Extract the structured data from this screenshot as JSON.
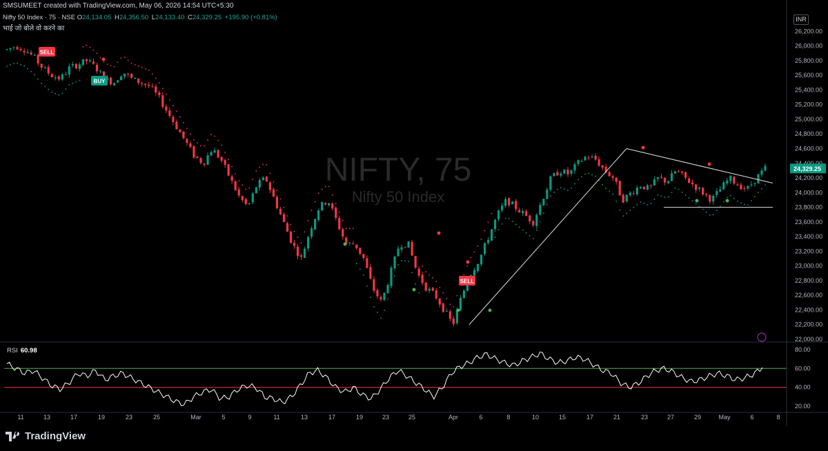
{
  "header": {
    "created_line": "SMSUMEET created with TradingView.com, May 06, 2026 14:54 UTC+5:30",
    "symbol_line": "Nifty 50 Index · 75 · NSE",
    "ohlc": {
      "open_label": "O",
      "open": "24,134.05",
      "high_label": "H",
      "high": "24,356.50",
      "low_label": "L",
      "low": "24,133.40",
      "close_label": "C",
      "close": "24,329.25",
      "change": "+195.90 (+0.81%)"
    },
    "note": "भाई जो बोले वो करने का"
  },
  "currency": "INR",
  "watermark": {
    "title": "NIFTY, 75",
    "subtitle": "Nifty 50 Index"
  },
  "price_axis": {
    "labels": [
      "26,200.00",
      "26,000.00",
      "25,800.00",
      "25,600.00",
      "25,400.00",
      "25,200.00",
      "25,000.00",
      "24,800.00",
      "24,600.00",
      "24,400.00",
      "24,200.00",
      "24,000.00",
      "23,800.00",
      "23,600.00",
      "23,400.00",
      "23,200.00",
      "23,000.00",
      "22,800.00",
      "22,600.00",
      "22,400.00",
      "22,200.00",
      "22,000.00"
    ],
    "last_price": "24,329.25"
  },
  "rsi": {
    "label": "RSI",
    "value": "60.98",
    "axis_labels": [
      "80.00",
      "60.00",
      "40.00",
      "20.00"
    ],
    "upper": 60,
    "lower": 40
  },
  "time_axis": [
    "11",
    "13",
    "17",
    "19",
    "23",
    "25",
    "Mar",
    "5",
    "9",
    "11",
    "13",
    "17",
    "19",
    "23",
    "25",
    "Apr",
    "6",
    "8",
    "10",
    "15",
    "17",
    "21",
    "23",
    "27",
    "29",
    "May",
    "6",
    "8"
  ],
  "signals": [
    {
      "text": "SELL",
      "color": "#f23645"
    },
    {
      "text": "BUY",
      "color": "#089981"
    },
    {
      "text": "SELL",
      "color": "#f23645"
    }
  ],
  "colors": {
    "up": "#089981",
    "down": "#f23645",
    "bg": "#000000",
    "rsi_line": "#ffffff",
    "rsi_upper": "#4caf50",
    "rsi_lower": "#f23645"
  },
  "branding": "TradingView",
  "chart_data": {
    "type": "candlestick",
    "symbol": "NIFTY",
    "interval": "75",
    "ylim": [
      22000,
      26250
    ],
    "rsi_ylim": [
      15,
      85
    ],
    "price_path": [
      25950,
      26000,
      25950,
      25850,
      25700,
      25600,
      25550,
      25700,
      25750,
      25800,
      25700,
      25550,
      25500,
      25650,
      25550,
      25500,
      25450,
      25300,
      25100,
      24900,
      24700,
      24500,
      24400,
      24600,
      24450,
      24200,
      23950,
      23800,
      24100,
      24200,
      23900,
      23600,
      23300,
      23100,
      23500,
      23800,
      23900,
      23600,
      23300,
      23300,
      23100,
      22700,
      22500,
      22900,
      23300,
      23300,
      22900,
      22700,
      22600,
      22400,
      22200,
      22600,
      22900,
      23100,
      23400,
      23700,
      23900,
      23800,
      23700,
      23600,
      23900,
      24200,
      24300,
      24250,
      24400,
      24500,
      24450,
      24300,
      24200,
      23900,
      24000,
      24100,
      24050,
      24200,
      24150,
      24300,
      24200,
      24100,
      24000,
      23900,
      24050,
      24200,
      24100,
      24050,
      24200,
      24330
    ],
    "rsi_path": [
      65,
      60,
      55,
      58,
      50,
      42,
      38,
      45,
      55,
      52,
      58,
      48,
      52,
      55,
      50,
      45,
      40,
      35,
      30,
      25,
      22,
      30,
      35,
      38,
      28,
      30,
      38,
      42,
      40,
      30,
      28,
      24,
      30,
      42,
      55,
      58,
      50,
      40,
      35,
      40,
      32,
      28,
      38,
      50,
      58,
      52,
      45,
      38,
      30,
      40,
      55,
      62,
      66,
      72,
      75,
      70,
      66,
      63,
      68,
      72,
      76,
      70,
      66,
      68,
      72,
      70,
      64,
      58,
      55,
      45,
      40,
      44,
      52,
      58,
      60,
      56,
      50,
      46,
      48,
      52,
      55,
      52,
      48,
      50,
      54,
      61
    ],
    "support_line": 23800,
    "annotations": [
      "SELL",
      "BUY",
      "SELL"
    ]
  }
}
